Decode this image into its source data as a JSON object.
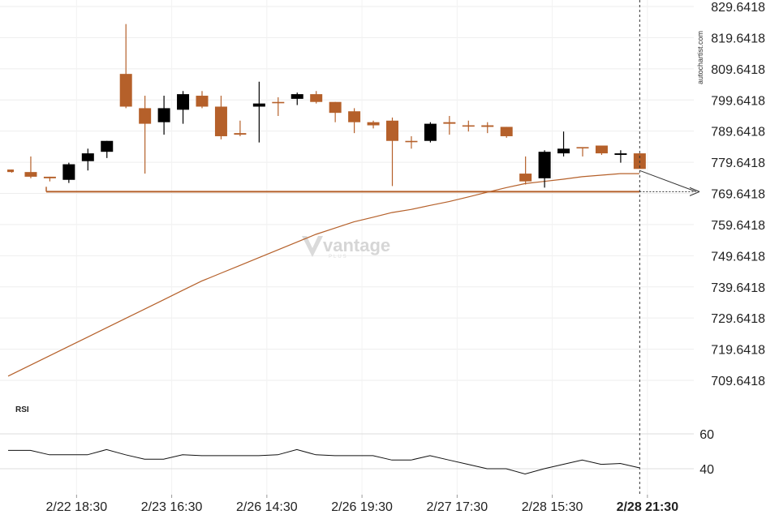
{
  "chart_data": [
    {
      "type": "candlestick",
      "yticks": [
        "829.6418",
        "819.6418",
        "809.6418",
        "799.6418",
        "789.6418",
        "779.6418",
        "769.6418",
        "759.6418",
        "749.6418",
        "739.6418",
        "729.6418",
        "719.6418",
        "709.6418"
      ],
      "ylim": [
        705.6418,
        831.6418
      ],
      "xticks": [
        {
          "label": "2/22 18:30",
          "index": 3,
          "bold": false
        },
        {
          "label": "2/23 16:30",
          "index": 8,
          "bold": false
        },
        {
          "label": "2/26 14:30",
          "index": 13,
          "bold": false
        },
        {
          "label": "2/26 19:30",
          "index": 18,
          "bold": false
        },
        {
          "label": "2/27 17:30",
          "index": 23,
          "bold": false
        },
        {
          "label": "2/28 15:30",
          "index": 28,
          "bold": false
        },
        {
          "label": "2/28 21:30",
          "index": 33,
          "bold": true
        }
      ],
      "colors": {
        "bull": "#000000",
        "bear": "#b5602a",
        "ma": "#b5602a",
        "support": "#b5602a",
        "grid": "#eeeeee"
      },
      "candles": [
        {
          "o": 777.3,
          "h": 777.3,
          "l": 776.3,
          "c": 776.5
        },
        {
          "o": 776.5,
          "h": 781.5,
          "l": 774.5,
          "c": 775.0
        },
        {
          "o": 775.0,
          "h": 775.0,
          "l": 773.5,
          "c": 774.5
        },
        {
          "o": 774.0,
          "h": 779.5,
          "l": 773.0,
          "c": 779.0
        },
        {
          "o": 780.0,
          "h": 784.0,
          "l": 777.0,
          "c": 782.5
        },
        {
          "o": 783.0,
          "h": 786.5,
          "l": 781.0,
          "c": 786.5
        },
        {
          "o": 808.0,
          "h": 824.0,
          "l": 797.0,
          "c": 797.5
        },
        {
          "o": 797.0,
          "h": 801.0,
          "l": 776.0,
          "c": 792.0
        },
        {
          "o": 792.5,
          "h": 801.0,
          "l": 788.5,
          "c": 797.0
        },
        {
          "o": 796.5,
          "h": 802.5,
          "l": 792.0,
          "c": 801.5
        },
        {
          "o": 801.0,
          "h": 802.5,
          "l": 797.0,
          "c": 797.5
        },
        {
          "o": 797.5,
          "h": 801.0,
          "l": 787.0,
          "c": 788.0
        },
        {
          "o": 789.0,
          "h": 793.0,
          "l": 788.0,
          "c": 788.5
        },
        {
          "o": 797.5,
          "h": 805.5,
          "l": 786.0,
          "c": 798.5
        },
        {
          "o": 799.0,
          "h": 800.5,
          "l": 794.5,
          "c": 799.0
        },
        {
          "o": 800.0,
          "h": 802.0,
          "l": 798.0,
          "c": 801.5
        },
        {
          "o": 801.5,
          "h": 802.5,
          "l": 798.5,
          "c": 799.0
        },
        {
          "o": 799.0,
          "h": 799.0,
          "l": 792.5,
          "c": 795.5
        },
        {
          "o": 796.0,
          "h": 797.0,
          "l": 789.0,
          "c": 792.5
        },
        {
          "o": 792.5,
          "h": 793.0,
          "l": 790.5,
          "c": 791.5
        },
        {
          "o": 793.0,
          "h": 794.0,
          "l": 772.0,
          "c": 786.5
        },
        {
          "o": 786.5,
          "h": 788.0,
          "l": 784.0,
          "c": 786.5
        },
        {
          "o": 786.5,
          "h": 792.5,
          "l": 786.0,
          "c": 792.0
        },
        {
          "o": 792.5,
          "h": 794.5,
          "l": 788.5,
          "c": 792.0
        },
        {
          "o": 791.5,
          "h": 793.0,
          "l": 789.5,
          "c": 791.5
        },
        {
          "o": 791.5,
          "h": 792.5,
          "l": 789.0,
          "c": 791.0
        },
        {
          "o": 791.0,
          "h": 791.0,
          "l": 787.5,
          "c": 788.0
        },
        {
          "o": 776.0,
          "h": 781.5,
          "l": 772.5,
          "c": 773.5
        },
        {
          "o": 774.5,
          "h": 783.5,
          "l": 771.5,
          "c": 783.0
        },
        {
          "o": 782.5,
          "h": 789.5,
          "l": 781.5,
          "c": 784.0
        },
        {
          "o": 784.5,
          "h": 784.5,
          "l": 781.5,
          "c": 784.5
        },
        {
          "o": 785.0,
          "h": 785.0,
          "l": 782.0,
          "c": 782.5
        },
        {
          "o": 782.0,
          "h": 783.5,
          "l": 779.5,
          "c": 782.5
        },
        {
          "o": 782.5,
          "h": 782.5,
          "l": 777.5,
          "c": 777.5
        }
      ],
      "moving_average": [
        711.0,
        714.5,
        717.5,
        720.5,
        723.5,
        726.5,
        729.5,
        732.5,
        735.5,
        738.5,
        741.5,
        744.0,
        746.5,
        749.0,
        751.5,
        754.0,
        756.5,
        758.5,
        760.5,
        762.0,
        763.5,
        764.5,
        765.8,
        767.0,
        768.5,
        770.0,
        771.5,
        772.8,
        773.5,
        774.2,
        775.0,
        775.5,
        776.0,
        776.0
      ],
      "support_level": 770.2,
      "projection_end": 770.2
    },
    {
      "type": "line",
      "name": "RSI",
      "title": "RSI",
      "yticks": [
        "60",
        "40"
      ],
      "ylim": [
        30,
        70
      ],
      "values": [
        50.5,
        50.5,
        48,
        48,
        48,
        51,
        48,
        45.5,
        45.5,
        48,
        47.5,
        47.5,
        47.5,
        47.5,
        48,
        51,
        48,
        47.5,
        47.5,
        47.5,
        45,
        45,
        47.5,
        45,
        42.5,
        40,
        40,
        37,
        40,
        42.5,
        45,
        42.5,
        43,
        40.5
      ]
    }
  ],
  "watermark": {
    "side_text": "autochartist.com",
    "logo_text": "vantage",
    "logo_sub": "PLUS"
  }
}
